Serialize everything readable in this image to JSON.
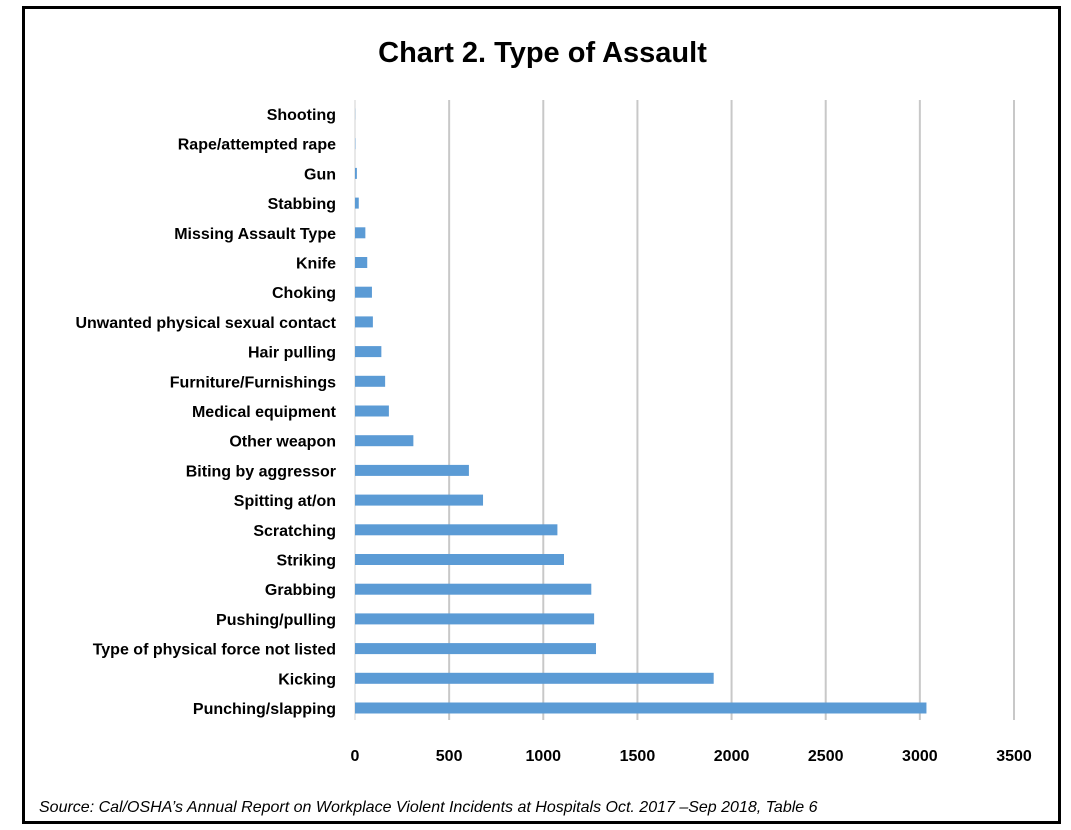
{
  "chart_data": {
    "type": "bar",
    "orientation": "horizontal",
    "title": "Chart 2. Type of Assault",
    "source": "Source: Cal/OSHA’s Annual Report on Workplace Violent Incidents at Hospitals Oct. 2017 –Sep 2018, Table 6",
    "categories": [
      "Shooting",
      "Rape/attempted rape",
      "Gun",
      "Stabbing",
      "Missing Assault Type",
      "Knife",
      "Choking",
      "Unwanted physical sexual contact",
      "Hair pulling",
      "Furniture/Furnishings",
      "Medical equipment",
      "Other weapon",
      "Biting by aggressor",
      "Spitting at/on",
      "Scratching",
      "Striking",
      "Grabbing",
      "Pushing/pulling",
      "Type of physical force not listed",
      "Kicking",
      "Punching/slapping"
    ],
    "values": [
      1,
      2,
      10,
      20,
      55,
      65,
      90,
      95,
      140,
      160,
      180,
      310,
      605,
      680,
      1075,
      1110,
      1255,
      1270,
      1280,
      1905,
      3035
    ],
    "xticks": [
      "0",
      "500",
      "1000",
      "1500",
      "2000",
      "2500",
      "3000",
      "3500"
    ],
    "xlim": [
      0,
      3500
    ],
    "grid": true,
    "color": "#5b9bd5"
  }
}
